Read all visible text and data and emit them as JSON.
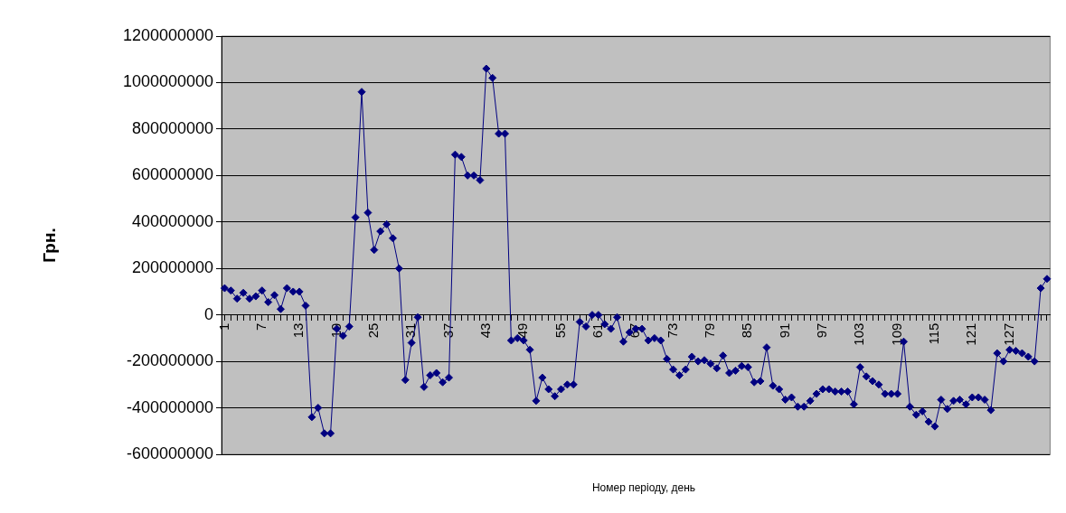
{
  "chart_data": {
    "type": "line",
    "xlabel": "Номер періоду, день",
    "ylabel": "Грн.",
    "categories": [
      "1",
      null,
      null,
      null,
      null,
      null,
      "7",
      null,
      null,
      null,
      null,
      null,
      "13",
      null,
      null,
      null,
      null,
      null,
      "19",
      null,
      null,
      null,
      null,
      null,
      "25",
      null,
      null,
      null,
      null,
      null,
      "31",
      null,
      null,
      null,
      null,
      null,
      "37",
      null,
      null,
      null,
      null,
      null,
      "43",
      null,
      null,
      null,
      null,
      null,
      "49",
      null,
      null,
      null,
      null,
      null,
      "55",
      null,
      null,
      null,
      null,
      null,
      "61",
      null,
      null,
      null,
      null,
      null,
      "67",
      null,
      null,
      null,
      null,
      null,
      "73",
      null,
      null,
      null,
      null,
      null,
      "79",
      null,
      null,
      null,
      null,
      null,
      "85",
      null,
      null,
      null,
      null,
      null,
      "91",
      null,
      null,
      null,
      null,
      null,
      "97",
      null,
      null,
      null,
      null,
      null,
      "103",
      null,
      null,
      null,
      null,
      null,
      "109",
      null,
      null,
      null,
      null,
      null,
      "115",
      null,
      null,
      null,
      null,
      null,
      "121",
      null,
      null,
      null,
      null,
      null,
      "127",
      null,
      null,
      null,
      null,
      null,
      null
    ],
    "series": [
      {
        "color": "#000080",
        "values": [
          115000000,
          105000000,
          70000000,
          95000000,
          70000000,
          80000000,
          105000000,
          55000000,
          85000000,
          25000000,
          115000000,
          100000000,
          100000000,
          40000000,
          -440000000,
          -400000000,
          -510000000,
          -510000000,
          -60000000,
          -90000000,
          -50000000,
          420000000,
          960000000,
          440000000,
          280000000,
          360000000,
          390000000,
          330000000,
          200000000,
          -280000000,
          -120000000,
          -10000000,
          -310000000,
          -260000000,
          -250000000,
          -290000000,
          -270000000,
          690000000,
          680000000,
          600000000,
          600000000,
          580000000,
          1060000000,
          1020000000,
          780000000,
          780000000,
          -110000000,
          -100000000,
          -110000000,
          -150000000,
          -370000000,
          -270000000,
          -320000000,
          -350000000,
          -320000000,
          -300000000,
          -300000000,
          -30000000,
          -50000000,
          0,
          0,
          -40000000,
          -60000000,
          -10000000,
          -115000000,
          -75000000,
          -60000000,
          -60000000,
          -110000000,
          -100000000,
          -110000000,
          -190000000,
          -235000000,
          -260000000,
          -235000000,
          -180000000,
          -200000000,
          -195000000,
          -210000000,
          -230000000,
          -175000000,
          -250000000,
          -240000000,
          -220000000,
          -225000000,
          -290000000,
          -285000000,
          -140000000,
          -305000000,
          -320000000,
          -365000000,
          -355000000,
          -395000000,
          -395000000,
          -370000000,
          -340000000,
          -320000000,
          -320000000,
          -330000000,
          -330000000,
          -330000000,
          -385000000,
          -225000000,
          -265000000,
          -285000000,
          -300000000,
          -340000000,
          -340000000,
          -340000000,
          -115000000,
          -395000000,
          -430000000,
          -415000000,
          -460000000,
          -480000000,
          -365000000,
          -405000000,
          -370000000,
          -365000000,
          -385000000,
          -355000000,
          -355000000,
          -365000000,
          -410000000,
          -165000000,
          -200000000,
          -150000000,
          -155000000,
          -165000000,
          -180000000,
          -200000000,
          115000000,
          155000000
        ]
      }
    ],
    "ylim": [
      -600000000,
      1200000000
    ],
    "yticks": [
      -600000000,
      -400000000,
      -200000000,
      0,
      200000000,
      400000000,
      600000000,
      800000000,
      1000000000,
      1200000000
    ],
    "grid": "y",
    "legend": false,
    "marker": "diamond",
    "line_style": "solid"
  }
}
